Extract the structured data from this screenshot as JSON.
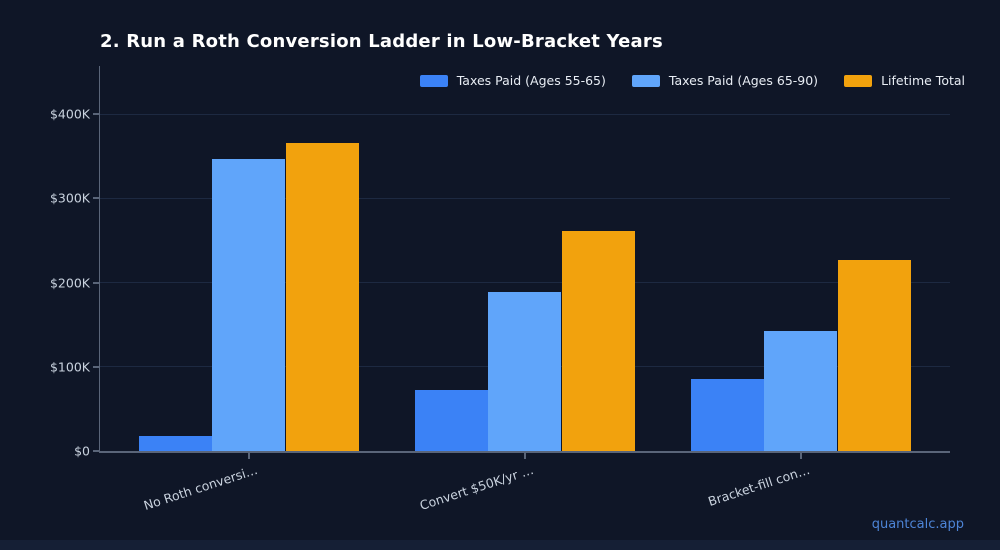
{
  "page": {
    "footer_link": "quantcalc.app"
  },
  "colors": {
    "background": "#0f1627",
    "series_blue": "#3b82f6",
    "series_light_blue": "#60a5fa",
    "series_orange": "#f2a20d",
    "footer_link": "#4d84d6"
  },
  "chart_data": {
    "type": "bar",
    "title": "2. Run a Roth Conversion Ladder in Low-Bracket Years",
    "categories": [
      "No Roth conversi…",
      "Convert $50K/yr …",
      "Bracket-fill con…"
    ],
    "series": [
      {
        "name": "Taxes Paid (Ages 55-65)",
        "color": "#3b82f6",
        "values": [
          18000,
          72000,
          85000
        ]
      },
      {
        "name": "Taxes Paid (Ages 65-90)",
        "color": "#60a5fa",
        "values": [
          347000,
          189000,
          142000
        ]
      },
      {
        "name": "Lifetime Total",
        "color": "#f2a20d",
        "values": [
          365000,
          261000,
          227000
        ]
      }
    ],
    "xlabel": "",
    "ylabel": "",
    "ylim": [
      0,
      400000
    ],
    "ytick_values": [
      0,
      100000,
      200000,
      300000,
      400000
    ],
    "ytick_labels": [
      "$0",
      "$100K",
      "$200K",
      "$300K",
      "$400K"
    ],
    "grid": "horizontal",
    "legend_position": "top-right"
  }
}
